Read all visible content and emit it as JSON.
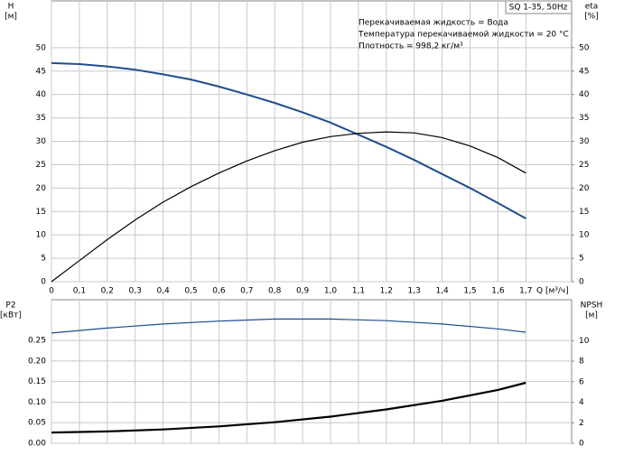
{
  "chart_data": [
    {
      "type": "line",
      "label_box": "SQ 1-35, 50Hz",
      "annotations": [
        "Перекачиваемая жидкость = Вода",
        "Температура перекачиваемой жидкости = 20 °C",
        "Плотность = 998,2 кг/м³"
      ],
      "ylabel": "H",
      "yunit": "[м]",
      "y2label": "eta",
      "y2unit": "[%]",
      "xlabel": "Q [м³/ч]",
      "xlim": [
        0,
        1.864
      ],
      "ylim": [
        0,
        60
      ],
      "y2lim": [
        0,
        60
      ],
      "xticks": [
        0,
        {
          "value": 0.1,
          "label": "0,1"
        },
        {
          "value": 0.2,
          "label": "0,2"
        },
        {
          "value": 0.3,
          "label": "0,3"
        },
        {
          "value": 0.4,
          "label": "0,4"
        },
        {
          "value": 0.5,
          "label": "0,5"
        },
        {
          "value": 0.6,
          "label": "0,6"
        },
        {
          "value": 0.7,
          "label": "0,7"
        },
        {
          "value": 0.8,
          "label": "0,8"
        },
        {
          "value": 0.9,
          "label": "0,9"
        },
        {
          "value": 1.0,
          "label": "1,0"
        },
        {
          "value": 1.1,
          "label": "1,1"
        },
        {
          "value": 1.2,
          "label": "1,2"
        },
        {
          "value": 1.3,
          "label": "1,3"
        },
        {
          "value": 1.4,
          "label": "1,4"
        },
        {
          "value": 1.5,
          "label": "1,5"
        },
        {
          "value": 1.6,
          "label": "1,6"
        },
        {
          "value": 1.7,
          "label": "1,7"
        }
      ],
      "xtick_labels": true,
      "yticks": [
        0,
        5,
        10,
        15,
        20,
        25,
        30,
        35,
        40,
        45,
        50
      ],
      "y2ticks": [
        0,
        5,
        10,
        15,
        20,
        25,
        30,
        35,
        40,
        45,
        50
      ],
      "x": [
        0,
        0.1,
        0.2,
        0.3,
        0.4,
        0.5,
        0.6,
        0.7,
        0.8,
        0.9,
        1.0,
        1.1,
        1.2,
        1.3,
        1.4,
        1.5,
        1.6,
        1.7
      ],
      "series": [
        {
          "color": "#1f4e8c",
          "width": 2,
          "values": [
            46.7,
            46.5,
            46,
            45.3,
            44.3,
            43.2,
            41.7,
            40,
            38.2,
            36.2,
            34,
            31.4,
            28.8,
            26,
            23,
            20,
            16.8,
            13.5
          ]
        },
        {
          "color": "#000000",
          "width": 1.2,
          "axis": "y2",
          "values": [
            0,
            4.5,
            9,
            13.2,
            17,
            20.3,
            23.2,
            25.8,
            28,
            29.8,
            31,
            31.7,
            32,
            31.8,
            30.8,
            29,
            26.5,
            23.2
          ]
        }
      ]
    },
    {
      "type": "line",
      "ylabel": "P2",
      "yunit": "[кВт]",
      "y2label": "NPSH",
      "y2unit": "[м]",
      "xlim": [
        0,
        1.864
      ],
      "ylim": [
        0,
        0.349
      ],
      "y2lim": [
        0,
        14
      ],
      "xticks": [
        0,
        0.1,
        0.2,
        0.3,
        0.4,
        0.5,
        0.6,
        0.7,
        0.8,
        0.9,
        1.0,
        1.1,
        1.2,
        1.3,
        1.4,
        1.5,
        1.6,
        1.7
      ],
      "xtick_labels": false,
      "yticks": [
        {
          "value": 0,
          "label": "0.00"
        },
        {
          "value": 0.05,
          "label": "0.05"
        },
        {
          "value": 0.1,
          "label": "0.10"
        },
        {
          "value": 0.15,
          "label": "0.15"
        },
        {
          "value": 0.2,
          "label": "0.20"
        },
        {
          "value": 0.25,
          "label": "0.25"
        }
      ],
      "y2ticks": [
        0,
        2,
        4,
        6,
        8,
        10
      ],
      "x": [
        0,
        0.2,
        0.4,
        0.6,
        0.8,
        1.0,
        1.2,
        1.4,
        1.6,
        1.7
      ],
      "series": [
        {
          "color": "#1f4e8c",
          "width": 1.2,
          "values": [
            0.268,
            0.28,
            0.29,
            0.297,
            0.302,
            0.302,
            0.298,
            0.29,
            0.278,
            0.27
          ]
        },
        {
          "color": "#000000",
          "width": 2.2,
          "axis": "y2",
          "values": [
            1.05,
            1.15,
            1.35,
            1.65,
            2.05,
            2.6,
            3.3,
            4.15,
            5.2,
            5.9
          ]
        }
      ]
    }
  ]
}
